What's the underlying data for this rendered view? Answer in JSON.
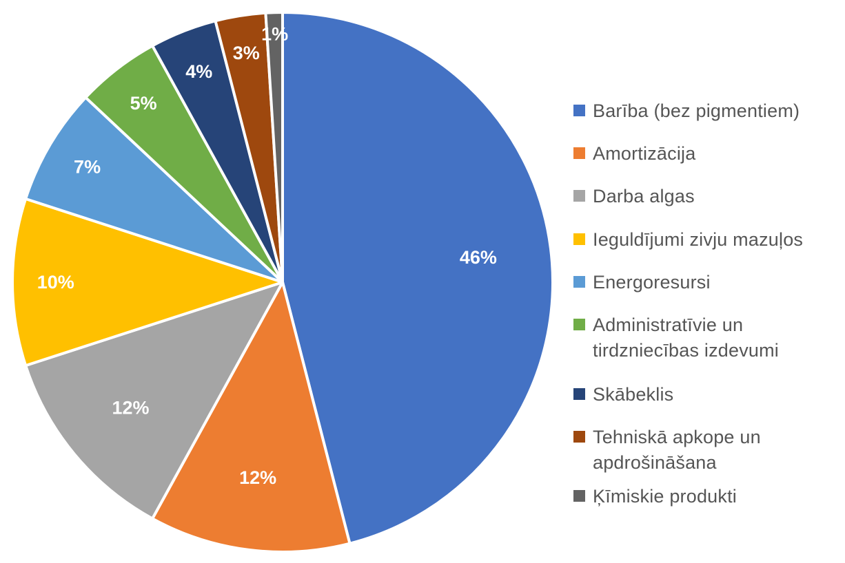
{
  "chart_data": {
    "type": "pie",
    "slices": [
      {
        "name": "Barība (bez pigmentiem)",
        "value": 46,
        "label": "46%",
        "color": "#4472C4"
      },
      {
        "name": "Amortizācija",
        "value": 12,
        "label": "12%",
        "color": "#ED7D31"
      },
      {
        "name": "Darba algas",
        "value": 12,
        "label": "12%",
        "color": "#A5A5A5"
      },
      {
        "name": "Ieguldījumi zivju mazuļos",
        "value": 10,
        "label": "10%",
        "color": "#FFC000"
      },
      {
        "name": "Energoresursi",
        "value": 7,
        "label": "7%",
        "color": "#5B9BD5"
      },
      {
        "name": "Administratīvie un tirdzniecības izdevumi",
        "value": 5,
        "label": "5%",
        "color": "#70AD47"
      },
      {
        "name": "Skābeklis",
        "value": 4,
        "label": "4%",
        "color": "#264478"
      },
      {
        "name": "Tehniskā apkope un apdrošināšana",
        "value": 3,
        "label": "3%",
        "color": "#9E480E"
      },
      {
        "name": "Ķīmiskie produkti",
        "value": 1,
        "label": "1%",
        "color": "#636363"
      }
    ],
    "legend_position": "right"
  }
}
